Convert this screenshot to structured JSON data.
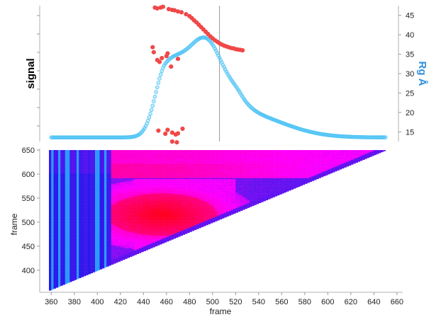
{
  "chart_data": [
    {
      "type": "scatter",
      "ylabel_left": "signal",
      "ylabel_right": "Rg Å",
      "xlim": [
        350,
        665
      ],
      "y_right_ticks": [
        15,
        20,
        25,
        30,
        35,
        40,
        45
      ],
      "y_right_range": [
        12.5,
        47.5
      ],
      "marker_line_x": 506,
      "colors": {
        "signal": "#4cc3f5",
        "rg": "#f04848",
        "marker_line": "#9a9a9a"
      },
      "signal_profile": {
        "x_start": 360,
        "x_end": 650,
        "baseline": 0.02,
        "peaks": [
          {
            "center": 459,
            "height": 0.44,
            "width_left": 9,
            "width_right": 14
          },
          {
            "center": 494,
            "height": 0.72,
            "width_left": 18,
            "width_right": 17
          },
          {
            "center": 525,
            "height": 0.18,
            "width_left": 10,
            "width_right": 35
          }
        ]
      },
      "rg_points": [
        [
          450,
          47
        ],
        [
          452,
          46.8
        ],
        [
          455,
          47
        ],
        [
          457,
          47.2
        ],
        [
          462,
          46.6
        ],
        [
          465,
          46.4
        ],
        [
          467,
          46.3
        ],
        [
          470,
          46
        ],
        [
          473,
          45.8
        ],
        [
          477,
          45.3
        ],
        [
          480,
          44.8
        ],
        [
          482,
          44.3
        ],
        [
          484,
          43.7
        ],
        [
          486,
          43.2
        ],
        [
          488,
          42.6
        ],
        [
          490,
          42
        ],
        [
          492,
          41.4
        ],
        [
          494,
          40.8
        ],
        [
          496,
          40.2
        ],
        [
          498,
          39.6
        ],
        [
          500,
          39.1
        ],
        [
          502,
          38.6
        ],
        [
          504,
          38.2
        ],
        [
          506,
          37.8
        ],
        [
          508,
          37.5
        ],
        [
          510,
          37.2
        ],
        [
          512,
          37
        ],
        [
          514,
          36.8
        ],
        [
          516,
          36.6
        ],
        [
          518,
          36.5
        ],
        [
          520,
          36.3
        ],
        [
          522,
          36.2
        ],
        [
          524,
          36.1
        ],
        [
          526,
          36
        ],
        [
          448,
          36.8
        ],
        [
          449,
          35.5
        ],
        [
          452,
          33.5
        ],
        [
          454,
          33
        ],
        [
          456,
          34
        ],
        [
          460,
          34.5
        ],
        [
          461,
          35.2
        ],
        [
          470,
          33.8
        ],
        [
          464,
          31.8
        ],
        [
          453,
          15.3
        ],
        [
          459,
          14.5
        ],
        [
          461,
          15.5
        ],
        [
          465,
          14.8
        ],
        [
          468,
          14.3
        ],
        [
          470,
          14.6
        ],
        [
          474,
          15.8
        ],
        [
          465,
          12.5
        ],
        [
          469,
          12.3
        ]
      ]
    },
    {
      "type": "heatmap",
      "xlabel": "frame",
      "ylabel": "frame",
      "x_ticks": [
        360,
        380,
        400,
        420,
        440,
        460,
        480,
        500,
        520,
        540,
        560,
        580,
        600,
        620,
        640,
        660
      ],
      "y_ticks": [
        400,
        450,
        500,
        550,
        600,
        650
      ],
      "xlim": [
        350,
        665
      ],
      "ylim": [
        354,
        653
      ],
      "frame_range": [
        358,
        650
      ],
      "hot_region": {
        "x_center": 455,
        "y_center": 515,
        "x_half_width": 48,
        "y_half_height": 44
      },
      "colors": {
        "low": "#0a1ee8",
        "mid": "#ff00ff",
        "high": "#ff0000",
        "bright_stripe": "#2a9cff"
      }
    }
  ]
}
